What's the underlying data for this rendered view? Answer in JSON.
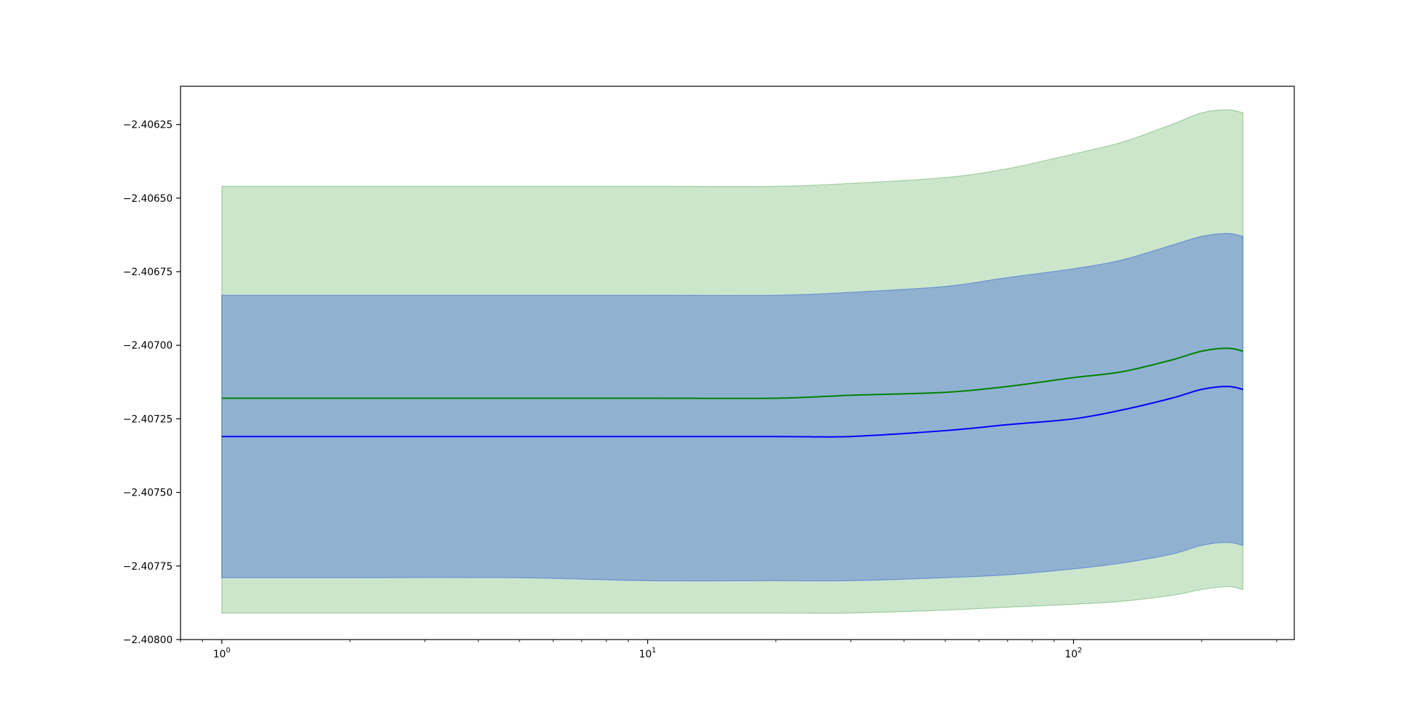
{
  "chart_data": {
    "type": "area",
    "xscale": "log",
    "xlim": [
      0.8,
      330
    ],
    "ylim": [
      -2.408,
      -2.40612
    ],
    "grid": false,
    "legend": "none",
    "title": "",
    "xlabel": "",
    "ylabel": "",
    "x_ticks": [
      {
        "value": 1,
        "base": "10",
        "exp": "0"
      },
      {
        "value": 10,
        "base": "10",
        "exp": "1"
      },
      {
        "value": 100,
        "base": "10",
        "exp": "2"
      }
    ],
    "y_ticks": [
      {
        "value": -2.40625,
        "label": "−2.40625"
      },
      {
        "value": -2.4065,
        "label": "−2.40650"
      },
      {
        "value": -2.40675,
        "label": "−2.40675"
      },
      {
        "value": -2.407,
        "label": "−2.40700"
      },
      {
        "value": -2.40725,
        "label": "−2.40725"
      },
      {
        "value": -2.4075,
        "label": "−2.40750"
      },
      {
        "value": -2.40775,
        "label": "−2.40775"
      },
      {
        "value": -2.408,
        "label": "−2.40800"
      }
    ],
    "x": [
      1,
      2,
      5,
      10,
      20,
      30,
      50,
      70,
      100,
      130,
      170,
      200,
      230,
      250
    ],
    "series": [
      {
        "color": "#008000",
        "band_color": "#008000",
        "band_opacity": 0.2,
        "mean": [
          -2.40718,
          -2.40718,
          -2.40718,
          -2.40718,
          -2.40718,
          -2.40717,
          -2.40716,
          -2.40714,
          -2.40711,
          -2.40709,
          -2.40705,
          -2.40702,
          -2.40701,
          -2.40702
        ],
        "upper": [
          -2.40646,
          -2.40646,
          -2.40646,
          -2.40646,
          -2.40646,
          -2.40645,
          -2.40643,
          -2.4064,
          -2.40635,
          -2.40631,
          -2.40625,
          -2.40621,
          -2.4062,
          -2.40621
        ],
        "lower": [
          -2.40791,
          -2.40791,
          -2.40791,
          -2.40791,
          -2.40791,
          -2.40791,
          -2.4079,
          -2.40789,
          -2.40788,
          -2.40787,
          -2.40785,
          -2.40783,
          -2.40782,
          -2.40783
        ]
      },
      {
        "color": "#0000ff",
        "band_color": "#1f4fd6",
        "band_opacity": 0.35,
        "mean": [
          -2.40731,
          -2.40731,
          -2.40731,
          -2.40731,
          -2.40731,
          -2.40731,
          -2.40729,
          -2.40727,
          -2.40725,
          -2.40722,
          -2.40718,
          -2.40715,
          -2.40714,
          -2.40715
        ],
        "upper": [
          -2.40683,
          -2.40683,
          -2.40683,
          -2.40683,
          -2.40683,
          -2.40682,
          -2.4068,
          -2.40677,
          -2.40674,
          -2.40671,
          -2.40666,
          -2.40663,
          -2.40662,
          -2.40663
        ],
        "lower": [
          -2.40779,
          -2.40779,
          -2.40779,
          -2.4078,
          -2.4078,
          -2.4078,
          -2.40779,
          -2.40778,
          -2.40776,
          -2.40774,
          -2.40771,
          -2.40768,
          -2.40767,
          -2.40768
        ]
      }
    ]
  }
}
